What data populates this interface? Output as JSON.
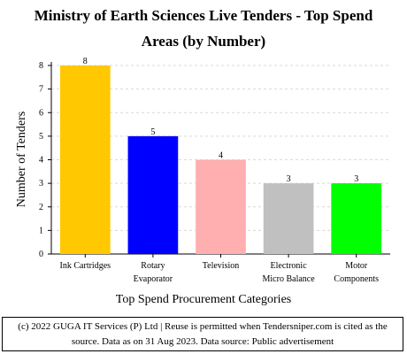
{
  "chart_data": {
    "type": "bar",
    "title": "Ministry of Earth Sciences Live Tenders - Top Spend Areas (by Number)",
    "title_lines": [
      "Ministry of Earth Sciences Live Tenders - Top Spend",
      "Areas (by Number)"
    ],
    "xlabel": "Top Spend Procurement Categories",
    "ylabel": "Number of Tenders",
    "categories": [
      [
        "Ink Cartridges"
      ],
      [
        "Rotary",
        "Evaporator"
      ],
      [
        "Television"
      ],
      [
        "Electronic",
        "Micro Balance"
      ],
      [
        "Motor",
        "Components"
      ]
    ],
    "values": [
      8,
      5,
      4,
      3,
      3
    ],
    "colors": [
      "#ffc800",
      "#0000ff",
      "#ffafaf",
      "#c0c0c0",
      "#00ff00"
    ],
    "ylim": [
      0,
      8
    ],
    "yticks": [
      0,
      1,
      2,
      3,
      4,
      5,
      6,
      7,
      8
    ],
    "grid": true
  },
  "footer": {
    "line1": "(c) 2022 GUGA IT Services (P) Ltd | Reuse is permitted when Tendersniper.com is cited as the",
    "line2": "source. Data as on 31 Aug 2023. Data source: Public advertisement"
  }
}
